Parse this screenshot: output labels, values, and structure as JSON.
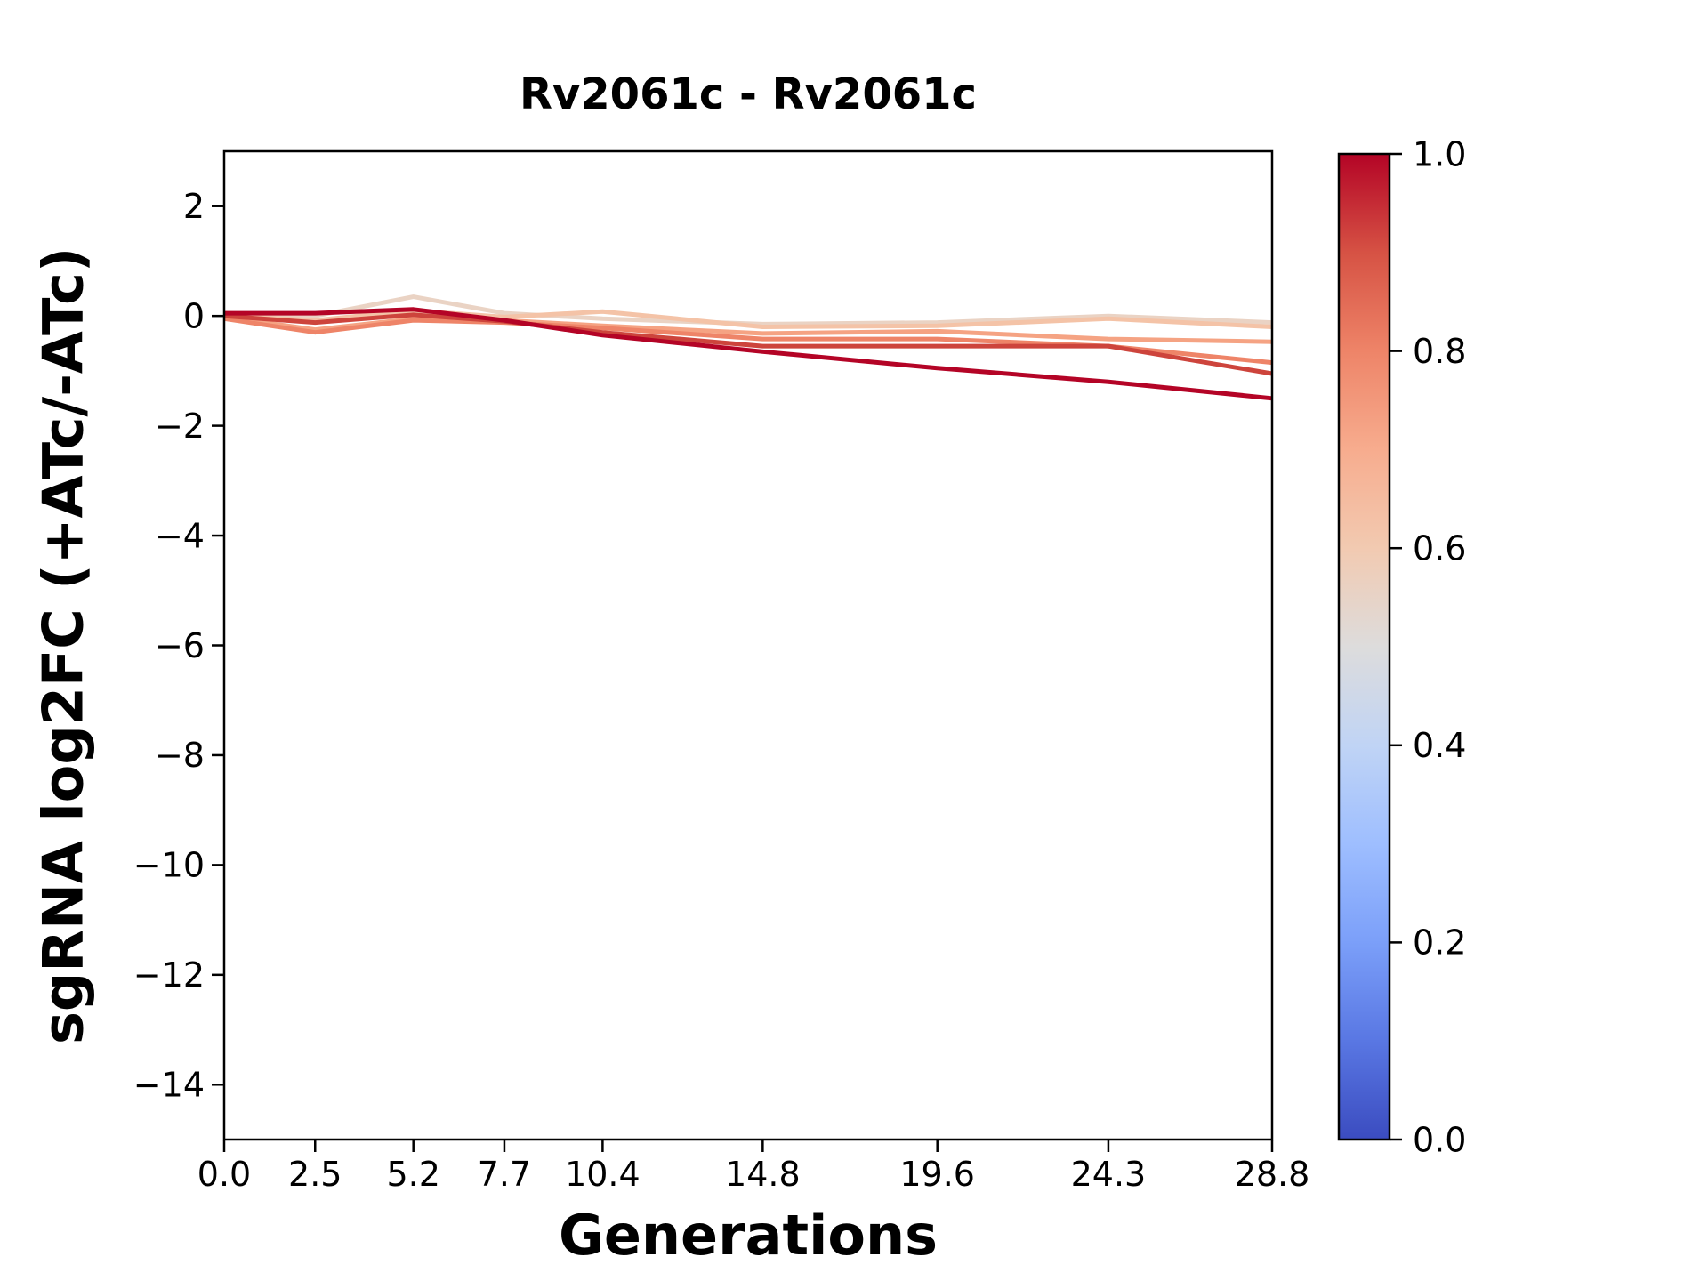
{
  "chart_data": {
    "type": "line",
    "title": "Rv2061c - Rv2061c",
    "xlabel": "Generations",
    "ylabel": "sgRNA log2FC (+ATc/-ATc)",
    "x": [
      0.0,
      2.5,
      5.2,
      7.7,
      10.4,
      14.8,
      19.6,
      24.3,
      28.8
    ],
    "xtick_labels": [
      "0.0",
      "2.5",
      "5.2",
      "7.7",
      "10.4",
      "14.8",
      "19.6",
      "24.3",
      "28.8"
    ],
    "ytick_values": [
      2,
      0,
      -2,
      -4,
      -6,
      -8,
      -10,
      -12,
      -14
    ],
    "ytick_labels": [
      "2",
      "0",
      "−2",
      "−4",
      "−6",
      "−8",
      "−10",
      "−12",
      "−14"
    ],
    "xlim": [
      0,
      28.8
    ],
    "ylim": [
      -15,
      3
    ],
    "grid": false,
    "series": [
      {
        "score": 0.56,
        "color": "#ead3c4",
        "values": [
          0.05,
          0.0,
          0.35,
          0.05,
          -0.05,
          -0.15,
          -0.12,
          0.0,
          -0.12
        ]
      },
      {
        "score": 0.63,
        "color": "#f4c3a7",
        "values": [
          0.0,
          -0.08,
          0.1,
          -0.02,
          0.08,
          -0.2,
          -0.18,
          -0.05,
          -0.2
        ]
      },
      {
        "score": 0.72,
        "color": "#f5a383",
        "values": [
          -0.02,
          -0.25,
          -0.05,
          -0.08,
          -0.18,
          -0.32,
          -0.28,
          -0.42,
          -0.47
        ]
      },
      {
        "score": 0.8,
        "color": "#ee8468",
        "values": [
          -0.05,
          -0.3,
          -0.08,
          -0.12,
          -0.22,
          -0.42,
          -0.42,
          -0.55,
          -0.85
        ]
      },
      {
        "score": 0.95,
        "color": "#cd443c",
        "values": [
          0.0,
          -0.12,
          0.02,
          -0.1,
          -0.3,
          -0.55,
          -0.55,
          -0.55,
          -1.05
        ]
      },
      {
        "score": 1.0,
        "color": "#b40426",
        "values": [
          0.05,
          0.05,
          0.12,
          -0.08,
          -0.35,
          -0.65,
          -0.95,
          -1.2,
          -1.5
        ]
      }
    ],
    "colorbar": {
      "colormap": "coolwarm",
      "tick_labels": [
        "1.0",
        "0.8",
        "0.6",
        "0.4",
        "0.2",
        "0.0"
      ],
      "tick_values": [
        1.0,
        0.8,
        0.6,
        0.4,
        0.2,
        0.0
      ],
      "gradient_stops": [
        {
          "t": 0.0,
          "color": "#3b4cc0"
        },
        {
          "t": 0.1,
          "color": "#5977e3"
        },
        {
          "t": 0.2,
          "color": "#7b9ff9"
        },
        {
          "t": 0.3,
          "color": "#9ebeff"
        },
        {
          "t": 0.4,
          "color": "#c0d4f5"
        },
        {
          "t": 0.5,
          "color": "#dddcdc"
        },
        {
          "t": 0.6,
          "color": "#f2cab1"
        },
        {
          "t": 0.7,
          "color": "#f7ac8e"
        },
        {
          "t": 0.8,
          "color": "#ee8468"
        },
        {
          "t": 0.9,
          "color": "#d65244"
        },
        {
          "t": 1.0,
          "color": "#b40426"
        }
      ]
    }
  }
}
